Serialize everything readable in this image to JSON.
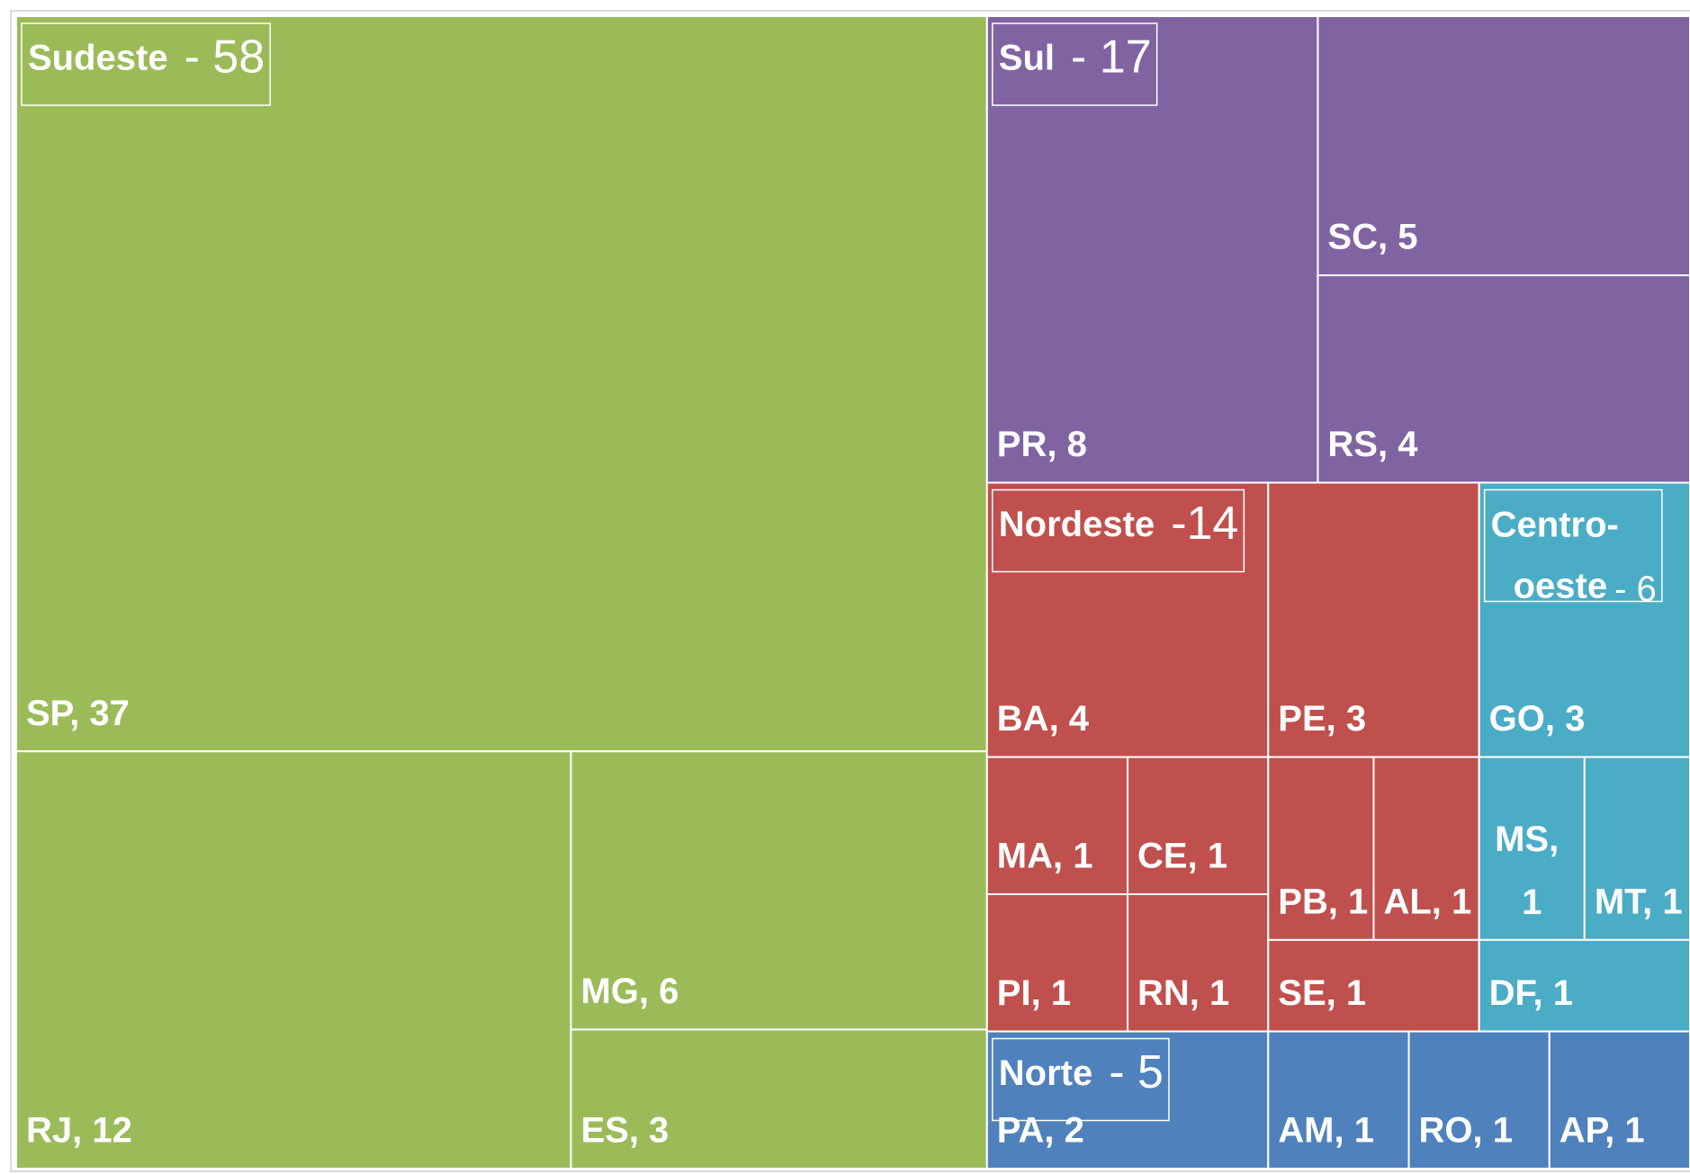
{
  "chart_data": {
    "type": "treemap",
    "regions": [
      {
        "name": "Sudeste",
        "value": 58,
        "value_label": "- 58",
        "color": "#9bbb59",
        "children": [
          {
            "label": "SP, 37",
            "value": 37
          },
          {
            "label": "RJ, 12",
            "value": 12
          },
          {
            "label": "MG, 6",
            "value": 6
          },
          {
            "label": "ES, 3",
            "value": 3
          }
        ]
      },
      {
        "name": "Sul",
        "value": 17,
        "value_label": "- 17",
        "color": "#8064a2",
        "children": [
          {
            "label": "PR, 8",
            "value": 8
          },
          {
            "label": "SC, 5",
            "value": 5
          },
          {
            "label": "RS, 4",
            "value": 4
          }
        ]
      },
      {
        "name": "Nordeste",
        "value": 14,
        "value_label": "-14",
        "color": "#c0504d",
        "children": [
          {
            "label": "BA, 4",
            "value": 4
          },
          {
            "label": "PE, 3",
            "value": 3
          },
          {
            "label": "MA, 1",
            "value": 1
          },
          {
            "label": "CE, 1",
            "value": 1
          },
          {
            "label": "PI, 1",
            "value": 1
          },
          {
            "label": "RN, 1",
            "value": 1
          },
          {
            "label": "PB, 1",
            "value": 1
          },
          {
            "label": "AL, 1",
            "value": 1
          },
          {
            "label": "SE, 1",
            "value": 1
          }
        ]
      },
      {
        "name": "Centro-oeste",
        "value": 6,
        "value_label": "- 6",
        "color": "#4bacc6",
        "children": [
          {
            "label": "GO, 3",
            "value": 3
          },
          {
            "label": "MS, 1",
            "value": 1
          },
          {
            "label": "MT, 1",
            "value": 1
          },
          {
            "label": "DF, 1",
            "value": 1
          }
        ]
      },
      {
        "name": "Norte",
        "value": 5,
        "value_label": "- 5",
        "color": "#4f81bd",
        "children": [
          {
            "label": "PA, 2",
            "value": 2
          },
          {
            "label": "AM, 1",
            "value": 1
          },
          {
            "label": "RO, 1",
            "value": 1
          },
          {
            "label": "AP, 1",
            "value": 1
          }
        ]
      }
    ]
  }
}
